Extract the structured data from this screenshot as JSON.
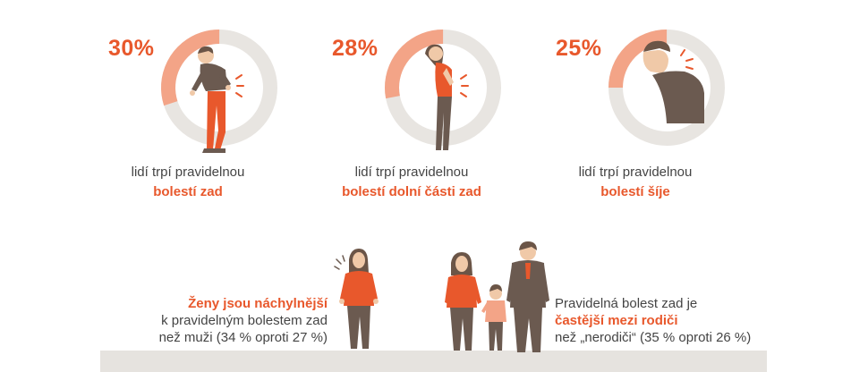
{
  "colors": {
    "accent": "#e8582c",
    "accent_light": "#f3a487",
    "ring_bg": "#e8e5e1",
    "skin": "#f0c9a8",
    "hair": "#6b5547",
    "cloth_dark": "#6b5a50",
    "ground": "#e6e3df"
  },
  "stats": [
    {
      "percent_label": "30%",
      "percent_value": 30,
      "caption_line1": "lidí trpí pravidelnou",
      "caption_line2": "bolestí zad",
      "icon": "back-pain-man-icon"
    },
    {
      "percent_label": "28%",
      "percent_value": 28,
      "caption_line1": "lidí trpí pravidelnou",
      "caption_line2": "bolestí dolní části zad",
      "icon": "lower-back-pain-woman-icon"
    },
    {
      "percent_label": "25%",
      "percent_value": 25,
      "caption_line1": "lidí trpí pravidelnou",
      "caption_line2": "bolestí šíje",
      "icon": "neck-pain-man-icon"
    }
  ],
  "women_note": {
    "highlight": "Ženy jsou náchylnější",
    "line2": "k pravidelným bolestem zad",
    "line3": "než muži (34 % oproti 27 %)",
    "icon": "woman-pain-icon"
  },
  "parents_note": {
    "line1": "Pravidelná bolest zad je",
    "highlight": "častější mezi rodiči",
    "line3": "než „nerodiči“ (35 % oproti 26 %)",
    "icon": "family-icon"
  }
}
